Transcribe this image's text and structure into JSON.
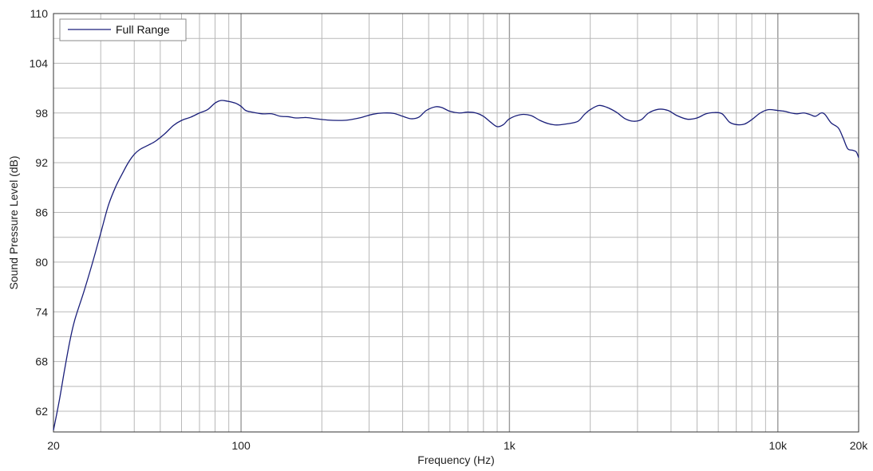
{
  "chart_data": {
    "type": "line",
    "title": "",
    "xlabel": "Frequency (Hz)",
    "ylabel": "Sound Pressure Level (dB)",
    "x_scale": "log",
    "xlim": [
      20,
      20000
    ],
    "ylim": [
      59.5,
      110
    ],
    "x_ticks": [
      {
        "value": 20,
        "label": "20"
      },
      {
        "value": 100,
        "label": "100"
      },
      {
        "value": 1000,
        "label": "1k"
      },
      {
        "value": 10000,
        "label": "10k"
      },
      {
        "value": 20000,
        "label": "20k"
      }
    ],
    "y_ticks": [
      {
        "value": 62,
        "label": "62"
      },
      {
        "value": 68,
        "label": "68"
      },
      {
        "value": 74,
        "label": "74"
      },
      {
        "value": 80,
        "label": "80"
      },
      {
        "value": 86,
        "label": "86"
      },
      {
        "value": 92,
        "label": "92"
      },
      {
        "value": 98,
        "label": "98"
      },
      {
        "value": 104,
        "label": "104"
      },
      {
        "value": 110,
        "label": "110"
      }
    ],
    "grid": true,
    "legend_position": "top-left",
    "series": [
      {
        "name": "Full Range",
        "color": "#1a1f7a",
        "points": [
          [
            20,
            59.7
          ],
          [
            21,
            63.2
          ],
          [
            22,
            67.0
          ],
          [
            23,
            70.4
          ],
          [
            24,
            73.0
          ],
          [
            26,
            76.5
          ],
          [
            28,
            80.0
          ],
          [
            30,
            83.5
          ],
          [
            32,
            86.8
          ],
          [
            34,
            89.0
          ],
          [
            36,
            90.6
          ],
          [
            38,
            92.0
          ],
          [
            40,
            93.0
          ],
          [
            42,
            93.6
          ],
          [
            45,
            94.1
          ],
          [
            48,
            94.6
          ],
          [
            52,
            95.5
          ],
          [
            56,
            96.5
          ],
          [
            60,
            97.1
          ],
          [
            65,
            97.5
          ],
          [
            70,
            98.0
          ],
          [
            75,
            98.4
          ],
          [
            80,
            99.2
          ],
          [
            84,
            99.5
          ],
          [
            88,
            99.45
          ],
          [
            95,
            99.2
          ],
          [
            100,
            98.8
          ],
          [
            104,
            98.3
          ],
          [
            110,
            98.1
          ],
          [
            120,
            97.9
          ],
          [
            130,
            97.9
          ],
          [
            140,
            97.6
          ],
          [
            150,
            97.55
          ],
          [
            160,
            97.4
          ],
          [
            175,
            97.45
          ],
          [
            190,
            97.3
          ],
          [
            210,
            97.15
          ],
          [
            230,
            97.1
          ],
          [
            250,
            97.15
          ],
          [
            280,
            97.45
          ],
          [
            310,
            97.85
          ],
          [
            340,
            98.0
          ],
          [
            370,
            97.95
          ],
          [
            400,
            97.6
          ],
          [
            430,
            97.3
          ],
          [
            460,
            97.5
          ],
          [
            490,
            98.3
          ],
          [
            530,
            98.75
          ],
          [
            560,
            98.65
          ],
          [
            600,
            98.2
          ],
          [
            650,
            98.0
          ],
          [
            700,
            98.1
          ],
          [
            750,
            98.0
          ],
          [
            800,
            97.6
          ],
          [
            850,
            96.9
          ],
          [
            900,
            96.35
          ],
          [
            950,
            96.6
          ],
          [
            1000,
            97.3
          ],
          [
            1100,
            97.8
          ],
          [
            1200,
            97.7
          ],
          [
            1300,
            97.1
          ],
          [
            1400,
            96.7
          ],
          [
            1500,
            96.55
          ],
          [
            1650,
            96.7
          ],
          [
            1800,
            97.0
          ],
          [
            1900,
            97.8
          ],
          [
            2000,
            98.4
          ],
          [
            2150,
            98.9
          ],
          [
            2300,
            98.7
          ],
          [
            2500,
            98.1
          ],
          [
            2700,
            97.3
          ],
          [
            2900,
            97.0
          ],
          [
            3100,
            97.2
          ],
          [
            3300,
            98.0
          ],
          [
            3600,
            98.45
          ],
          [
            3900,
            98.3
          ],
          [
            4200,
            97.7
          ],
          [
            4600,
            97.25
          ],
          [
            5000,
            97.4
          ],
          [
            5400,
            97.9
          ],
          [
            5800,
            98.05
          ],
          [
            6200,
            97.9
          ],
          [
            6600,
            96.9
          ],
          [
            7000,
            96.6
          ],
          [
            7500,
            96.65
          ],
          [
            8000,
            97.2
          ],
          [
            8600,
            98.0
          ],
          [
            9200,
            98.4
          ],
          [
            10000,
            98.3
          ],
          [
            10600,
            98.2
          ],
          [
            11200,
            98.0
          ],
          [
            11800,
            97.9
          ],
          [
            12500,
            98.0
          ],
          [
            13200,
            97.8
          ],
          [
            13800,
            97.6
          ],
          [
            14500,
            98.0
          ],
          [
            15000,
            97.8
          ],
          [
            15800,
            96.8
          ],
          [
            16800,
            96.2
          ],
          [
            17500,
            95.0
          ],
          [
            18200,
            93.7
          ],
          [
            19000,
            93.5
          ],
          [
            19600,
            93.3
          ],
          [
            20000,
            92.6
          ]
        ]
      }
    ]
  }
}
